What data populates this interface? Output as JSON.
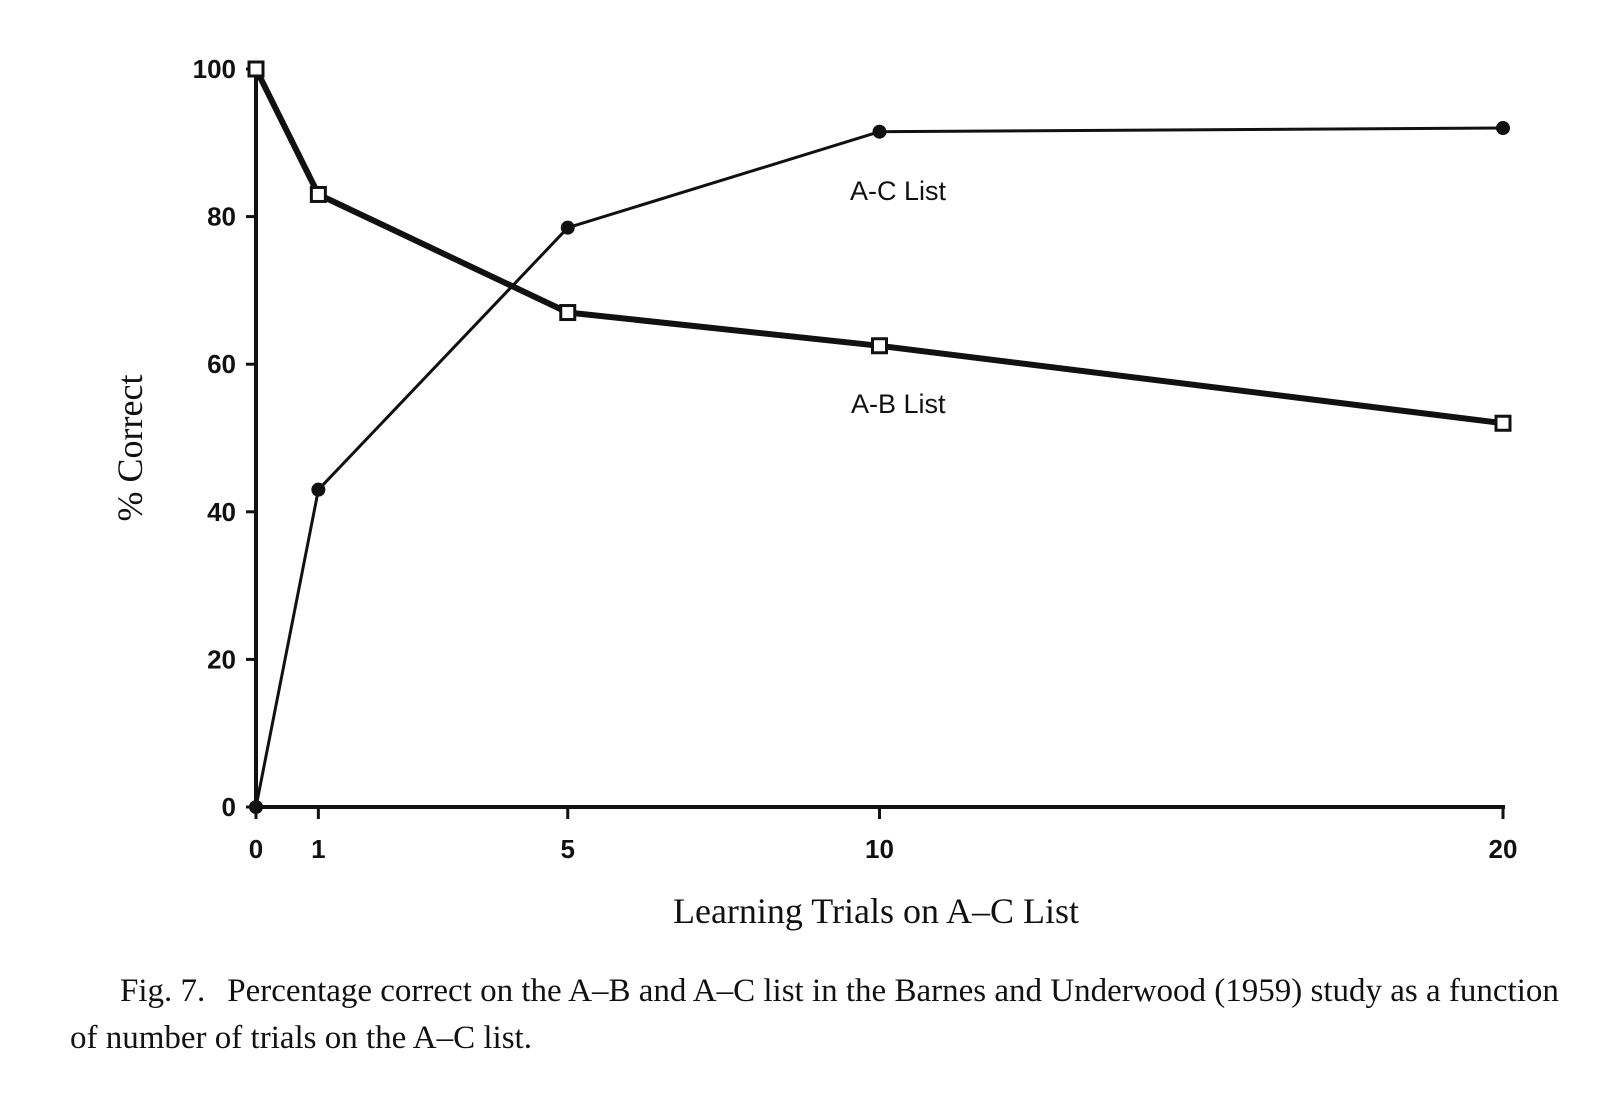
{
  "chart_data": {
    "type": "line",
    "xlabel": "Learning Trials on A–C List",
    "ylabel": "% Correct",
    "x_ticks": [
      0,
      1,
      5,
      10,
      20
    ],
    "y_ticks": [
      0,
      20,
      40,
      60,
      80,
      100
    ],
    "xlim": [
      0,
      20
    ],
    "ylim": [
      0,
      100
    ],
    "grid": false,
    "series": [
      {
        "name": "A-C List",
        "marker": "filled-circle",
        "stroke_color": "#111111",
        "x": [
          0,
          1,
          5,
          10,
          20
        ],
        "y": [
          0,
          43,
          78.5,
          91.5,
          92
        ]
      },
      {
        "name": "A-B List",
        "marker": "open-square",
        "stroke_color": "#111111",
        "x": [
          0,
          1,
          5,
          10,
          20
        ],
        "y": [
          100,
          83,
          67,
          62.5,
          52
        ]
      }
    ]
  },
  "caption": {
    "label": "Fig. 7.",
    "text": "Percentage correct on the A–B and A–C list in the Barnes and Underwood (1959) study as a function of number of trials on the A–C list."
  }
}
